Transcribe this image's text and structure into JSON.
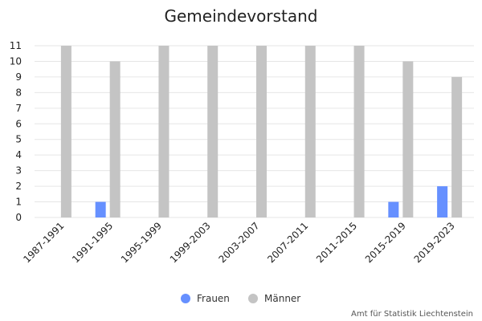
{
  "chart_data": {
    "type": "bar",
    "title": "Gemeindevorstand",
    "xlabel": "",
    "ylabel": "",
    "categories": [
      "1987-1991",
      "1991-1995",
      "1995-1999",
      "1999-2003",
      "2003-2007",
      "2007-2011",
      "2011-2015",
      "2015-2019",
      "2019-2023"
    ],
    "series": [
      {
        "name": "Frauen",
        "color": "#6690ff",
        "values": [
          0,
          1,
          0,
          0,
          0,
          0,
          0,
          1,
          2
        ]
      },
      {
        "name": "Männer",
        "color": "#c4c4c4",
        "values": [
          11,
          10,
          11,
          11,
          11,
          11,
          11,
          10,
          9
        ]
      }
    ],
    "ylim": [
      0,
      11
    ],
    "yticks": [
      "0",
      "1",
      "2",
      "3",
      "4",
      "5",
      "6",
      "7",
      "8",
      "9",
      "10",
      "11"
    ],
    "grid": true,
    "legend_position": "bottom-center"
  },
  "credit": "Amt für Statistik Liechtenstein"
}
